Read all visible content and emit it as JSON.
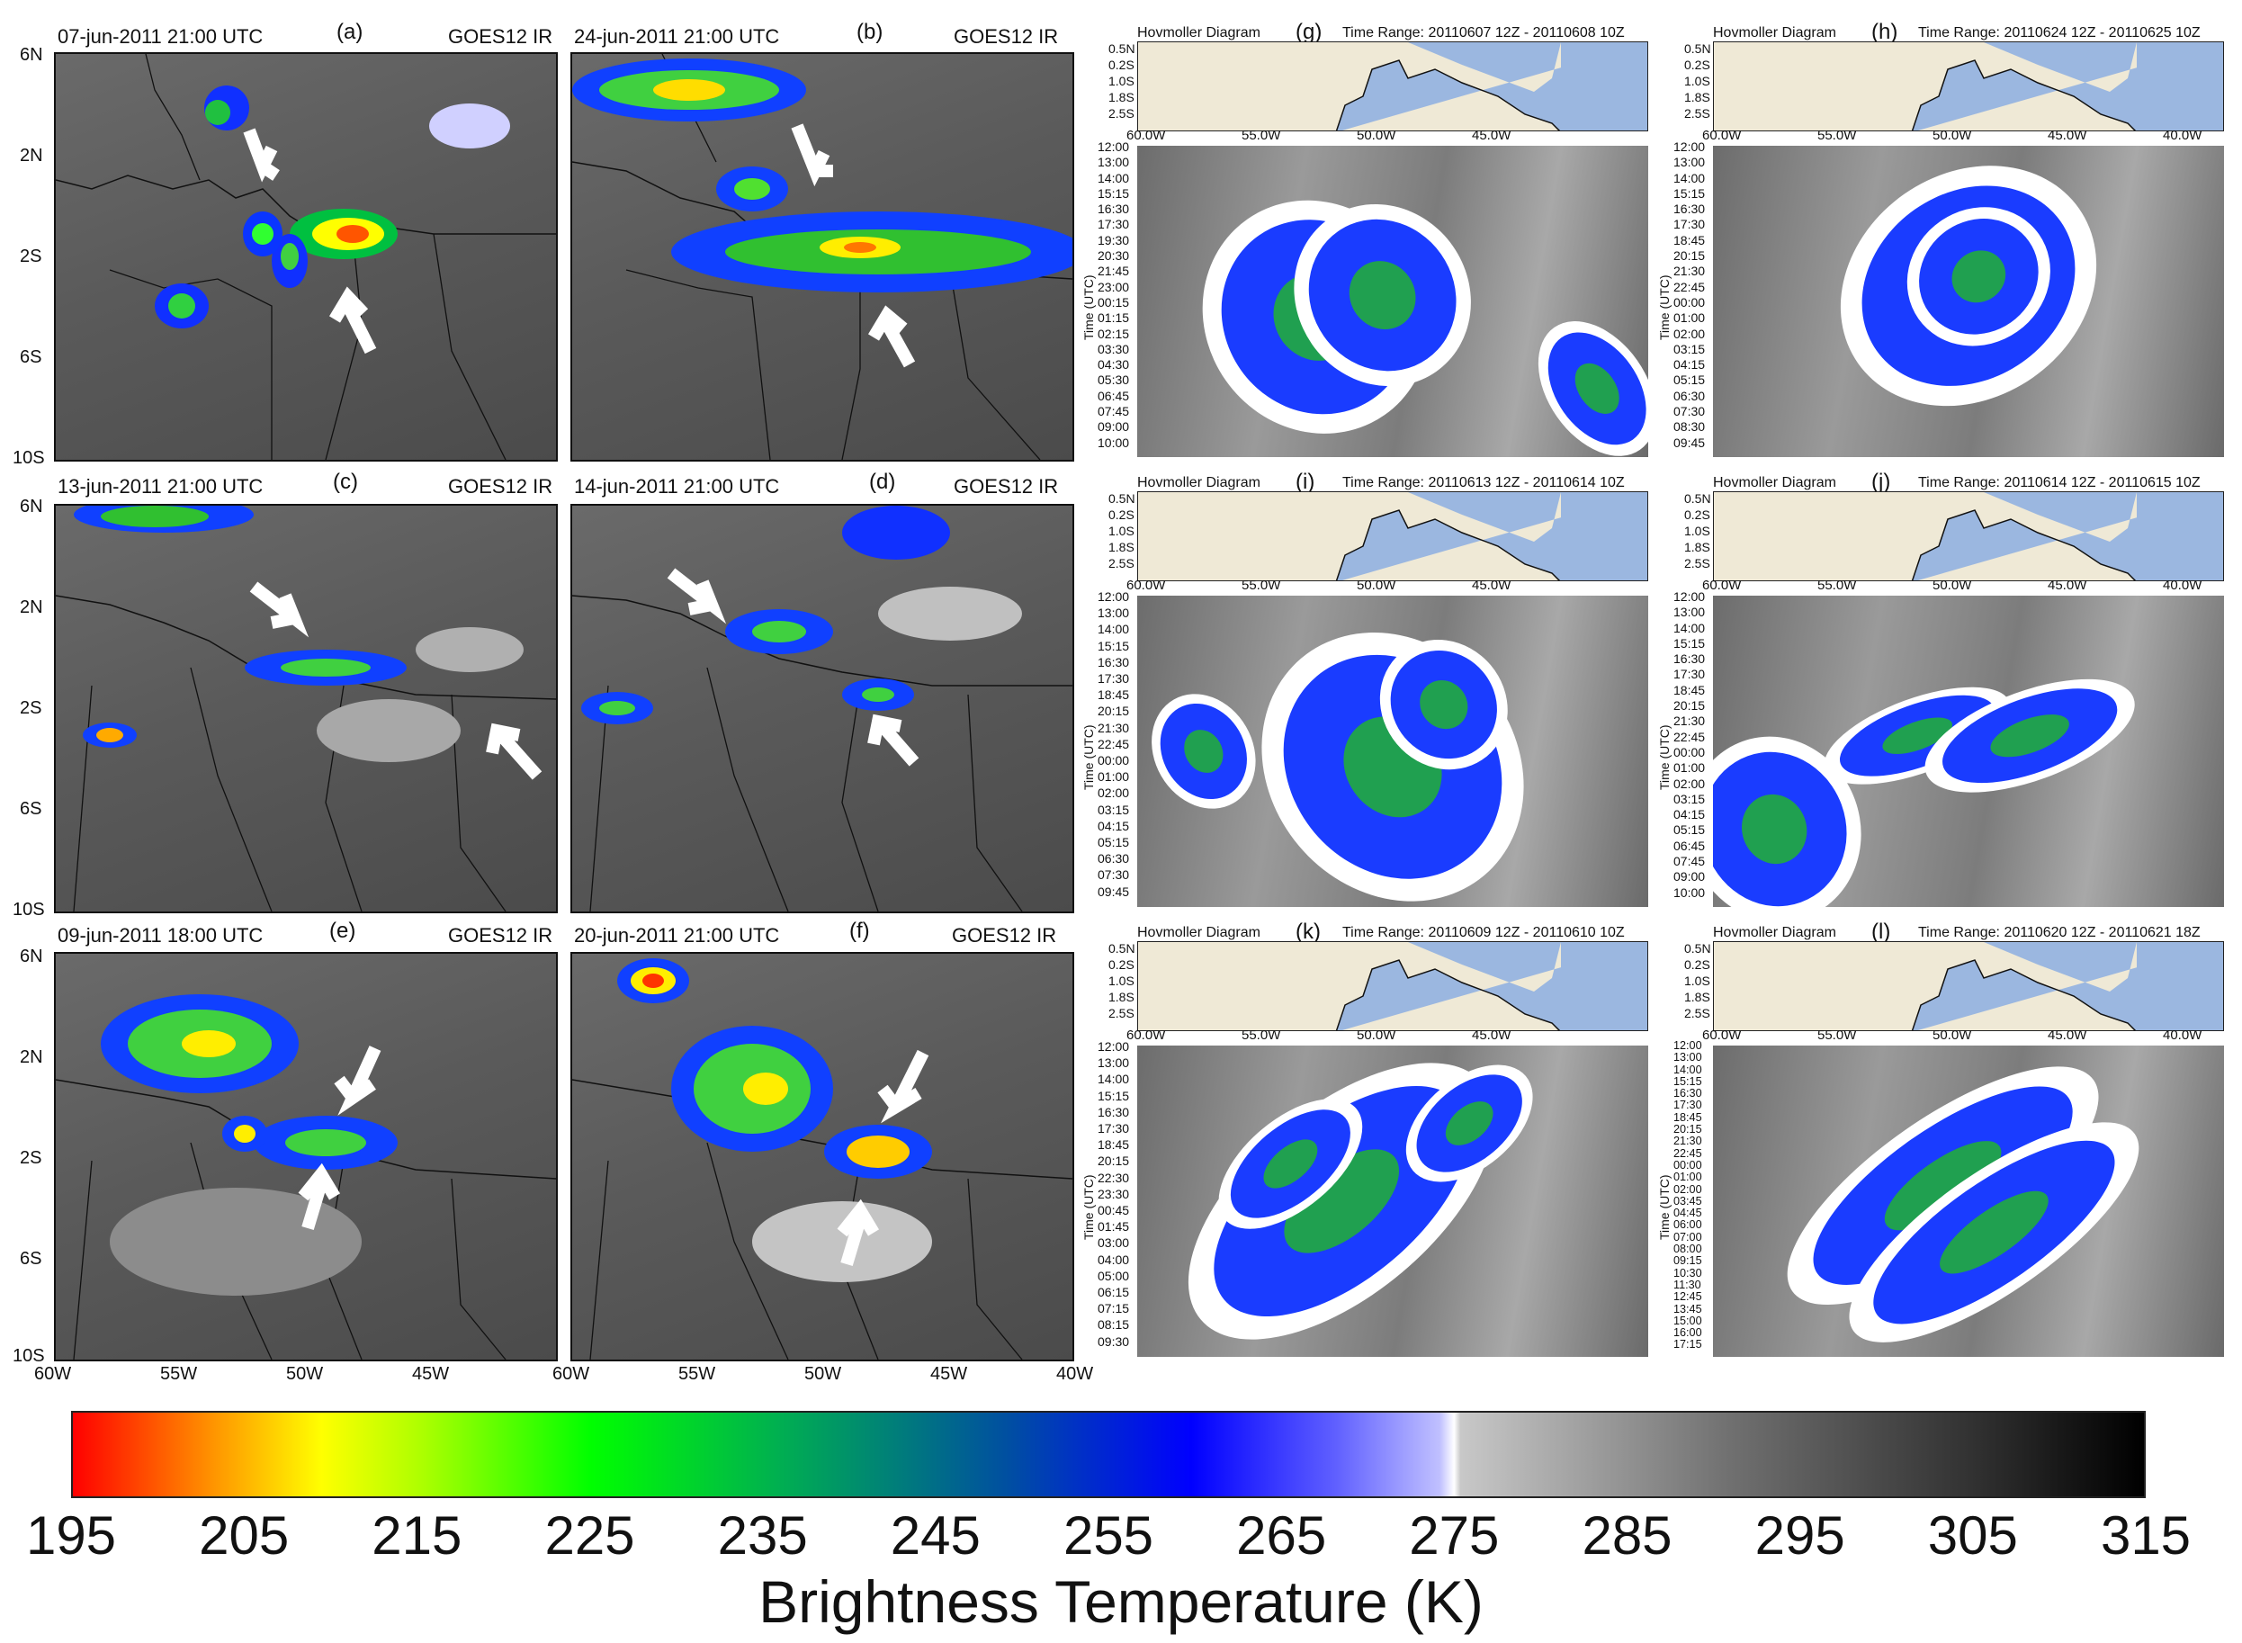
{
  "map_panels": [
    {
      "id": "a",
      "date": "07-jun-2011 21:00 UTC",
      "letter": "(a)",
      "satellite": "GOES12 IR"
    },
    {
      "id": "b",
      "date": "24-jun-2011 21:00 UTC",
      "letter": "(b)",
      "satellite": "GOES12 IR"
    },
    {
      "id": "c",
      "date": "13-jun-2011 21:00 UTC",
      "letter": "(c)",
      "satellite": "GOES12 IR"
    },
    {
      "id": "d",
      "date": "14-jun-2011 21:00 UTC",
      "letter": "(d)",
      "satellite": "GOES12 IR"
    },
    {
      "id": "e",
      "date": "09-jun-2011 18:00 UTC",
      "letter": "(e)",
      "satellite": "GOES12 IR"
    },
    {
      "id": "f",
      "date": "20-jun-2011 21:00 UTC",
      "letter": "(f)",
      "satellite": "GOES12 IR"
    }
  ],
  "map_lat_labels": [
    "6N",
    "2N",
    "2S",
    "6S",
    "10S"
  ],
  "map_lon_labels_left": [
    "60W",
    "55W",
    "50W",
    "45W"
  ],
  "map_lon_labels_right": [
    "60W",
    "55W",
    "50W",
    "45W",
    "40W"
  ],
  "hovmoller_panels": [
    {
      "id": "g",
      "title": "Hovmoller Diagram",
      "letter": "(g)",
      "range": "Time Range: 20110607 12Z - 20110608 10Z",
      "lons": [
        "60.0W",
        "55.0W",
        "50.0W",
        "45.0W"
      ],
      "times": [
        "12:00",
        "13:00",
        "14:00",
        "15:15",
        "16:30",
        "17:30",
        "19:30",
        "20:30",
        "21:45",
        "23:00",
        "00:15",
        "01:15",
        "02:15",
        "03:30",
        "04:30",
        "05:30",
        "06:45",
        "07:45",
        "09:00",
        "10:00"
      ]
    },
    {
      "id": "h",
      "title": "Hovmoller Diagram",
      "letter": "(h)",
      "range": "Time Range: 20110624 12Z - 20110625 10Z",
      "lons": [
        "60.0W",
        "55.0W",
        "50.0W",
        "45.0W",
        "40.0W"
      ],
      "times": [
        "12:00",
        "13:00",
        "14:00",
        "15:15",
        "16:30",
        "17:30",
        "18:45",
        "20:15",
        "21:30",
        "22:45",
        "00:00",
        "01:00",
        "02:00",
        "03:15",
        "04:15",
        "05:15",
        "06:30",
        "07:30",
        "08:30",
        "09:45"
      ]
    },
    {
      "id": "i",
      "title": "Hovmoller Diagram",
      "letter": "(i)",
      "range": "Time Range: 20110613 12Z - 20110614 10Z",
      "lons": [
        "60.0W",
        "55.0W",
        "50.0W",
        "45.0W"
      ],
      "times": [
        "12:00",
        "13:00",
        "14:00",
        "15:15",
        "16:30",
        "17:30",
        "18:45",
        "20:15",
        "21:30",
        "22:45",
        "00:00",
        "01:00",
        "02:00",
        "03:15",
        "04:15",
        "05:15",
        "06:30",
        "07:30",
        "09:45"
      ]
    },
    {
      "id": "j",
      "title": "Hovmoller Diagram",
      "letter": "(j)",
      "range": "Time Range: 20110614 12Z - 20110615 10Z",
      "lons": [
        "60.0W",
        "55.0W",
        "50.0W",
        "45.0W",
        "40.0W"
      ],
      "times": [
        "12:00",
        "13:00",
        "14:00",
        "15:15",
        "16:30",
        "17:30",
        "18:45",
        "20:15",
        "21:30",
        "22:45",
        "00:00",
        "01:00",
        "02:00",
        "03:15",
        "04:15",
        "05:15",
        "06:45",
        "07:45",
        "09:00",
        "10:00"
      ]
    },
    {
      "id": "k",
      "title": "Hovmoller Diagram",
      "letter": "(k)",
      "range": "Time Range: 20110609 12Z - 20110610 10Z",
      "lons": [
        "60.0W",
        "55.0W",
        "50.0W",
        "45.0W"
      ],
      "times": [
        "12:00",
        "13:00",
        "14:00",
        "15:15",
        "16:30",
        "17:30",
        "18:45",
        "20:15",
        "22:30",
        "23:30",
        "00:45",
        "01:45",
        "03:00",
        "04:00",
        "05:00",
        "06:15",
        "07:15",
        "08:15",
        "09:30"
      ]
    },
    {
      "id": "l",
      "title": "Hovmoller Diagram",
      "letter": "(l)",
      "range": "Time Range: 20110620 12Z - 20110621 18Z",
      "lons": [
        "60.0W",
        "55.0W",
        "50.0W",
        "45.0W",
        "40.0W"
      ],
      "times": [
        "12:00",
        "13:00",
        "14:00",
        "15:15",
        "16:30",
        "17:30",
        "18:45",
        "20:15",
        "21:30",
        "22:45",
        "00:00",
        "01:00",
        "02:00",
        "03:45",
        "04:45",
        "06:00",
        "07:00",
        "08:00",
        "09:15",
        "10:30",
        "11:30",
        "12:45",
        "13:45",
        "15:00",
        "16:00",
        "17:15"
      ]
    }
  ],
  "hov_lat_labels": [
    "0.5N",
    "0.2S",
    "1.0S",
    "1.8S",
    "2.5S"
  ],
  "hov_time_axis_title": "Time (UTC)",
  "colors": {
    "land": "#efe9d6",
    "ocean": "#9bb7e0"
  },
  "chart_data": {
    "type": "heatmap",
    "colorbar_ticks": [
      195,
      205,
      215,
      225,
      235,
      245,
      255,
      265,
      275,
      285,
      295,
      305,
      315
    ],
    "colorbar_label": "Brightness Temperature (K)",
    "range": [
      195,
      315
    ]
  }
}
